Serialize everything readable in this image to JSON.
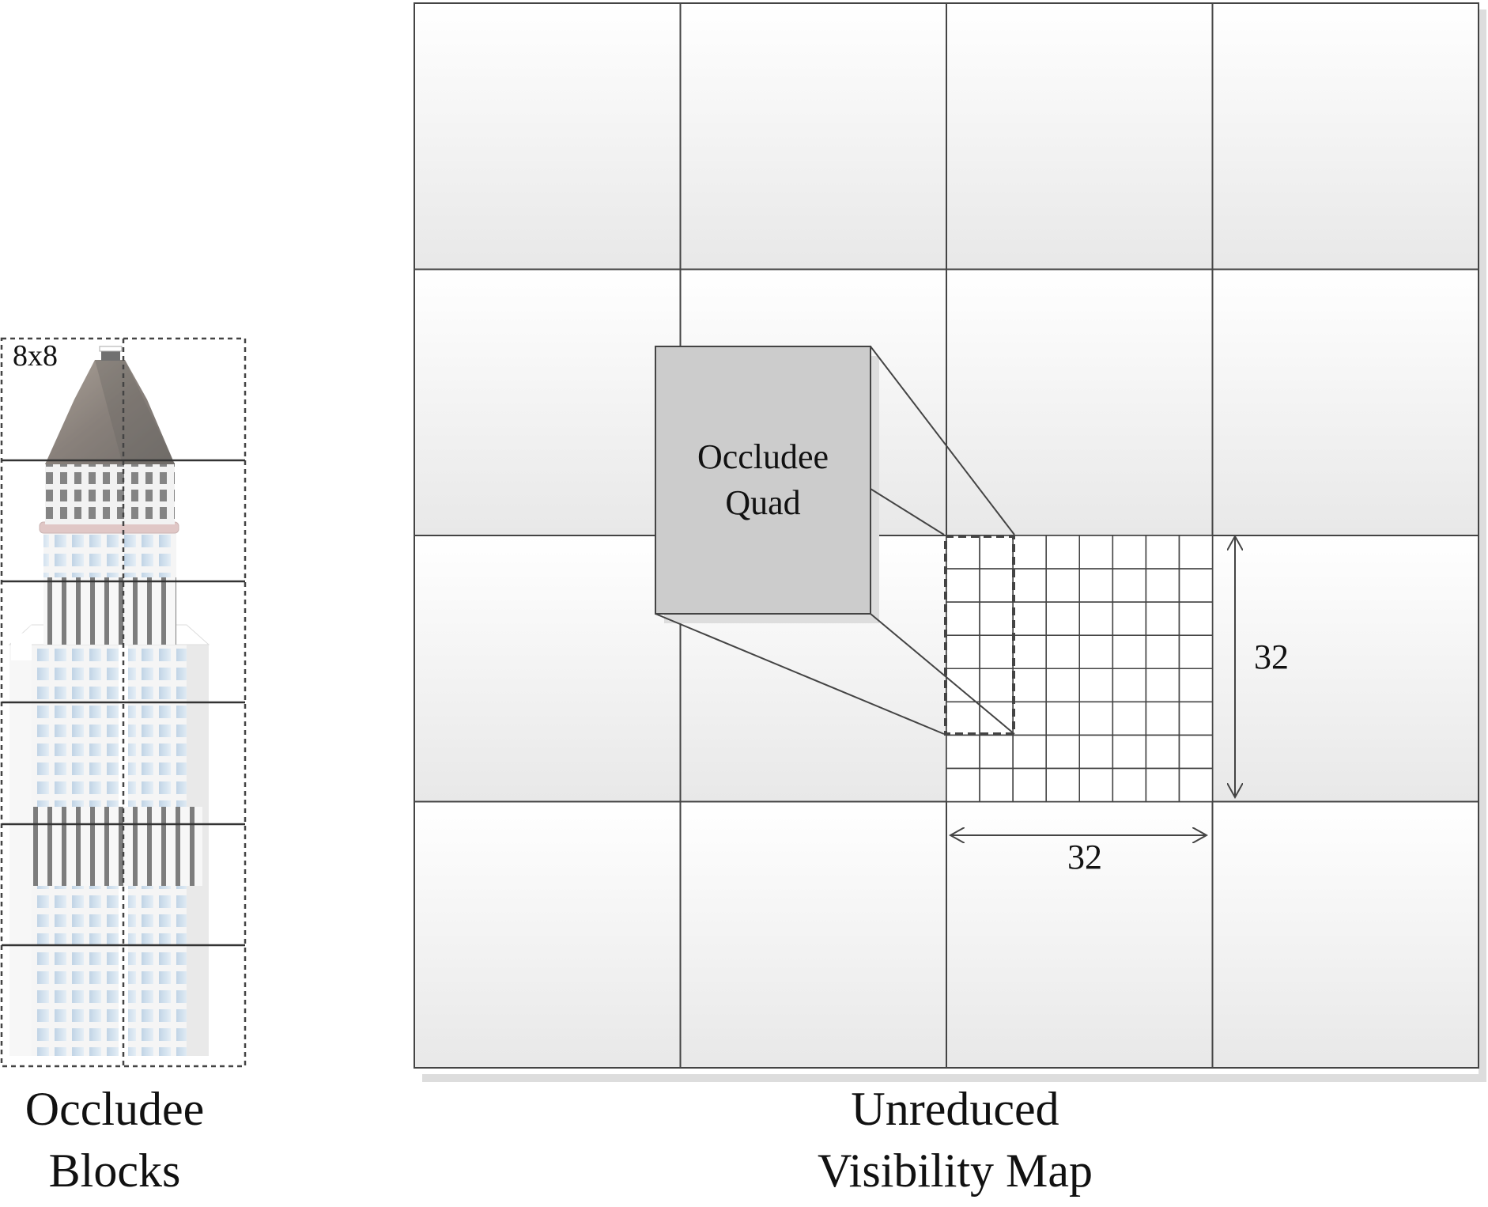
{
  "occludee_panel": {
    "block_size_label": "8x8",
    "caption_line1": "Occludee",
    "caption_line2": "Blocks"
  },
  "visibility_map": {
    "caption_line1": "Unreduced",
    "caption_line2": "Visibility Map",
    "tile_grid": {
      "rows": 4,
      "cols": 4
    },
    "fine_grid": {
      "rows": 8,
      "cols": 8
    }
  },
  "occludee_quad": {
    "label_line1": "Occludee",
    "label_line2": "Quad"
  },
  "dimensions": {
    "vertical": "32",
    "horizontal": "32"
  },
  "colors": {
    "line": "#444444",
    "tile_top": "#ffffff",
    "tile_bottom": "#e9e9e9",
    "quad_fill": "#cccccc",
    "shadow": "#dddddd"
  }
}
